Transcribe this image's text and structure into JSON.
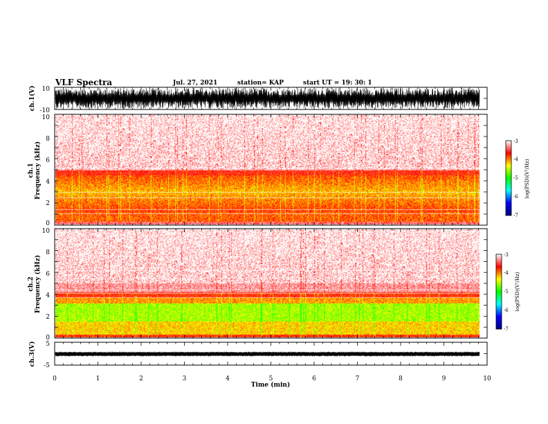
{
  "header": {
    "title": "VLF Spectra",
    "date": "Jul. 27, 2021",
    "station": "station= KAP",
    "start": "start  UT =   19: 30: 1"
  },
  "chart_data": [
    {
      "id": "ch1-waveform",
      "type": "line",
      "ylabel": "ch.1(V)",
      "ylim": [
        -10,
        10
      ],
      "yticks": [
        "10",
        "-10"
      ],
      "xlim": [
        0,
        10
      ]
    },
    {
      "id": "ch1-spectrogram",
      "type": "heatmap",
      "ylabel_line1": "ch.1",
      "ylabel_line2": "Frequency  (kHz)",
      "ylim": [
        0,
        10
      ],
      "yticks": [
        "0",
        "2",
        "4",
        "6",
        "8",
        "10"
      ],
      "xlim": [
        0,
        10
      ],
      "colorbar": {
        "label": "log(PSD)(V²/Hz)",
        "range": [
          -7,
          -3
        ],
        "ticks": [
          "-3",
          "-4",
          "-5",
          "-6",
          "-7"
        ],
        "colors": [
          "#000080",
          "#0000ff",
          "#00ffff",
          "#00ff00",
          "#ffff00",
          "#ff0000",
          "#ffffff"
        ]
      }
    },
    {
      "id": "ch2-spectrogram",
      "type": "heatmap",
      "ylabel_line1": "ch.2",
      "ylabel_line2": "Frequency  (kHz)",
      "ylim": [
        0,
        10
      ],
      "yticks": [
        "0",
        "2",
        "4",
        "6",
        "8",
        "10"
      ],
      "xlim": [
        0,
        10
      ],
      "colorbar": {
        "label": "log(PSD)(V²/Hz)",
        "range": [
          -7,
          -3
        ],
        "ticks": [
          "-3",
          "-4",
          "-5",
          "-6",
          "-7"
        ],
        "colors": [
          "#000080",
          "#0000ff",
          "#00ffff",
          "#00ff00",
          "#ffff00",
          "#ff0000",
          "#ffffff"
        ]
      }
    },
    {
      "id": "ch3-waveform",
      "type": "line",
      "ylabel": "ch.3(V)",
      "ylim": [
        -5,
        5
      ],
      "yticks": [
        "5",
        "-5"
      ],
      "xlim": [
        0,
        10
      ],
      "xlabel": "Time  (min)",
      "xticks": [
        "0",
        "1",
        "2",
        "3",
        "4",
        "5",
        "6",
        "7",
        "8",
        "9",
        "10"
      ]
    }
  ]
}
